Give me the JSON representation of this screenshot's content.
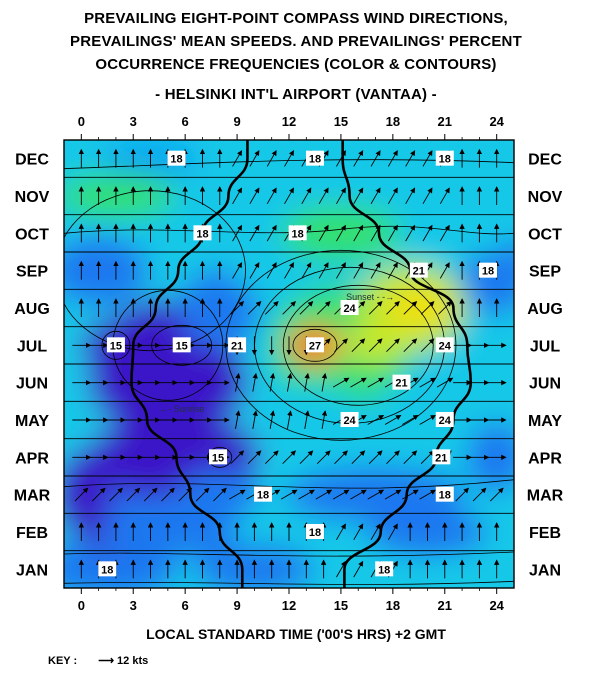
{
  "chart_data": {
    "type": "heatmap",
    "title_lines": [
      "PREVAILING EIGHT-POINT COMPASS WIND DIRECTIONS,",
      "PREVAILINGS' MEAN SPEEDS. AND PREVAILINGS' PERCENT",
      "OCCURRENCE FREQUENCIES (COLOR & CONTOURS)"
    ],
    "subtitle": "- HELSINKI INT'L AIRPORT (VANTAA) -",
    "xlabel": "LOCAL STANDARD TIME ('00'S HRS)  +2 GMT",
    "key_label": "KEY :",
    "key_value": "12 kts",
    "x_ticks": [
      "0",
      "3",
      "6",
      "9",
      "12",
      "15",
      "18",
      "21",
      "24"
    ],
    "x_range": [
      -1,
      25
    ],
    "months": [
      "JAN",
      "FEB",
      "MAR",
      "APR",
      "MAY",
      "JUN",
      "JUL",
      "AUG",
      "SEP",
      "OCT",
      "NOV",
      "DEC"
    ],
    "grid": true,
    "contour_labels": [
      {
        "text": "18",
        "hour": 1.5,
        "month": "JAN"
      },
      {
        "text": "18",
        "hour": 17.5,
        "month": "JAN"
      },
      {
        "text": "18",
        "hour": 13.5,
        "month": "FEB"
      },
      {
        "text": "18",
        "hour": 10.5,
        "month": "MAR"
      },
      {
        "text": "18",
        "hour": 21,
        "month": "MAR"
      },
      {
        "text": "15",
        "hour": 7.9,
        "month": "APR"
      },
      {
        "text": "21",
        "hour": 20.8,
        "month": "APR"
      },
      {
        "text": "24",
        "hour": 15.5,
        "month": "MAY"
      },
      {
        "text": "24",
        "hour": 21,
        "month": "MAY"
      },
      {
        "text": "21",
        "hour": 18.5,
        "month": "JUN"
      },
      {
        "text": "21",
        "hour": 9,
        "month": "JUL"
      },
      {
        "text": "27",
        "hour": 13.5,
        "month": "JUL"
      },
      {
        "text": "24",
        "hour": 21,
        "month": "JUL"
      },
      {
        "text": "15",
        "hour": 2,
        "month": "JUL"
      },
      {
        "text": "15",
        "hour": 5.8,
        "month": "JUL"
      },
      {
        "text": "24",
        "hour": 15.5,
        "month": "AUG"
      },
      {
        "text": "18",
        "hour": 23.5,
        "month": "SEP"
      },
      {
        "text": "21",
        "hour": 19.5,
        "month": "SEP"
      },
      {
        "text": "18",
        "hour": 7,
        "month": "OCT"
      },
      {
        "text": "18",
        "hour": 12.5,
        "month": "OCT"
      },
      {
        "text": "18",
        "hour": 5.5,
        "month": "DEC"
      },
      {
        "text": "18",
        "hour": 13.5,
        "month": "DEC"
      },
      {
        "text": "18",
        "hour": 21,
        "month": "DEC"
      }
    ],
    "annotations": [
      {
        "text": "Sunset",
        "hour": 15.3,
        "month": "AUG"
      },
      {
        "text": "Sunrise",
        "hour": 4.5,
        "month": "MAY"
      }
    ],
    "sunrise_hours": [
      9.3,
      8.0,
      6.3,
      5.5,
      3.8,
      2.9,
      3.0,
      4.3,
      5.6,
      7.0,
      8.5,
      9.6
    ],
    "sunset_hours": [
      15.2,
      17.3,
      18.8,
      20.5,
      21.5,
      22.5,
      22.3,
      21.5,
      19.0,
      17.2,
      15.5,
      15.1
    ],
    "colors": {
      "low": "#3a14c8",
      "midlow": "#1a78f0",
      "mid": "#18c8e8",
      "midhigh": "#30e070",
      "high": "#f0e010",
      "peak": "#ff2000"
    }
  }
}
